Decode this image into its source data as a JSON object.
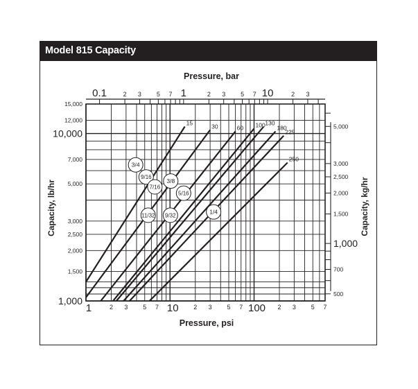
{
  "title": "Model 815 Capacity",
  "colors": {
    "title_bar": "#231f20",
    "ink": "#231f20",
    "background": "#ffffff"
  },
  "chart_data": {
    "type": "line",
    "title": "Model 815 Capacity",
    "axes": {
      "bottom": {
        "label": "Pressure, psi",
        "scale": "log",
        "range": [
          1,
          700
        ],
        "ticks": [
          {
            "v": 1,
            "t": "1",
            "major": true
          },
          {
            "v": 2,
            "t": "2"
          },
          {
            "v": 3,
            "t": "3"
          },
          {
            "v": 5,
            "t": "5"
          },
          {
            "v": 7,
            "t": "7"
          },
          {
            "v": 10,
            "t": "10",
            "major": true
          },
          {
            "v": 20,
            "t": "2"
          },
          {
            "v": 30,
            "t": "3"
          },
          {
            "v": 50,
            "t": "5"
          },
          {
            "v": 70,
            "t": "7"
          },
          {
            "v": 100,
            "t": "100",
            "major": true
          },
          {
            "v": 200,
            "t": "2"
          },
          {
            "v": 300,
            "t": "3"
          },
          {
            "v": 500,
            "t": "5"
          },
          {
            "v": 700,
            "t": "7"
          }
        ]
      },
      "top": {
        "label": "Pressure, bar",
        "scale": "log",
        "ticks": [
          {
            "v": 0.1,
            "t": "0.1",
            "major": true
          },
          {
            "v": 0.2,
            "t": "2"
          },
          {
            "v": 0.3,
            "t": "3"
          },
          {
            "v": 0.5,
            "t": "5"
          },
          {
            "v": 0.7,
            "t": "7"
          },
          {
            "v": 1,
            "t": "1",
            "major": true
          },
          {
            "v": 2,
            "t": "2"
          },
          {
            "v": 3,
            "t": "3"
          },
          {
            "v": 5,
            "t": "5"
          },
          {
            "v": 7,
            "t": "7"
          },
          {
            "v": 10,
            "t": "10",
            "major": true
          },
          {
            "v": 20,
            "t": "2"
          },
          {
            "v": 30,
            "t": "3"
          }
        ]
      },
      "left": {
        "label": "Capacity, lb/hr",
        "scale": "log",
        "range": [
          1000,
          15000
        ],
        "ticks": [
          {
            "v": 1000,
            "t": "1,000",
            "major": true
          },
          {
            "v": 1500,
            "t": "1,500"
          },
          {
            "v": 2000,
            "t": "2,000"
          },
          {
            "v": 2500,
            "t": "2,500"
          },
          {
            "v": 3000,
            "t": "3,000"
          },
          {
            "v": 5000,
            "t": "5,000"
          },
          {
            "v": 7000,
            "t": "7,000"
          },
          {
            "v": 10000,
            "t": "10,000",
            "major": true
          },
          {
            "v": 12000,
            "t": "12,000"
          },
          {
            "v": 15000,
            "t": "15,000"
          }
        ]
      },
      "right": {
        "label": "Capacity, kg/hr",
        "scale": "log",
        "ticks": [
          {
            "v": 500,
            "t": "500"
          },
          {
            "v": 700,
            "t": "700"
          },
          {
            "v": 1000,
            "t": "1,000",
            "major": true
          },
          {
            "v": 1500,
            "t": "1,500"
          },
          {
            "v": 2000,
            "t": "2,000"
          },
          {
            "v": 2500,
            "t": "2,500"
          },
          {
            "v": 3000,
            "t": "3,000"
          },
          {
            "v": 5000,
            "t": "5,000"
          }
        ]
      }
    },
    "grid": true,
    "pressure_lines": [
      {
        "label": "15",
        "points": [
          [
            1,
            1300
          ],
          [
            15,
            11000
          ]
        ]
      },
      {
        "label": "30",
        "points": [
          [
            1,
            1050
          ],
          [
            30,
            10500
          ]
        ]
      },
      {
        "label": "60",
        "points": [
          [
            1.5,
            1000
          ],
          [
            60,
            10300
          ]
        ]
      },
      {
        "label": "100",
        "points": [
          [
            2.1,
            1000
          ],
          [
            100,
            10700
          ]
        ]
      },
      {
        "label": "130",
        "points": [
          [
            2.3,
            1000
          ],
          [
            130,
            11000
          ]
        ]
      },
      {
        "label": "180",
        "points": [
          [
            2.8,
            1000
          ],
          [
            180,
            10300
          ]
        ]
      },
      {
        "label": "225",
        "points": [
          [
            3.3,
            1000
          ],
          [
            225,
            9700
          ]
        ]
      },
      {
        "label": "250",
        "points": [
          [
            5.7,
            1000
          ],
          [
            250,
            6700
          ]
        ]
      }
    ],
    "orifice_markers": [
      {
        "label": "3/4",
        "x": 3.9,
        "y": 6500
      },
      {
        "label": "9/16",
        "x": 5.2,
        "y": 5500
      },
      {
        "label": "7/16",
        "x": 6.6,
        "y": 4800
      },
      {
        "label": "3/8",
        "x": 10.2,
        "y": 5200
      },
      {
        "label": "5/16",
        "x": 14.5,
        "y": 4400
      },
      {
        "label": "11/32",
        "x": 5.5,
        "y": 3250
      },
      {
        "label": "9/32",
        "x": 10.1,
        "y": 3250
      },
      {
        "label": "1/4",
        "x": 33,
        "y": 3400
      }
    ]
  }
}
